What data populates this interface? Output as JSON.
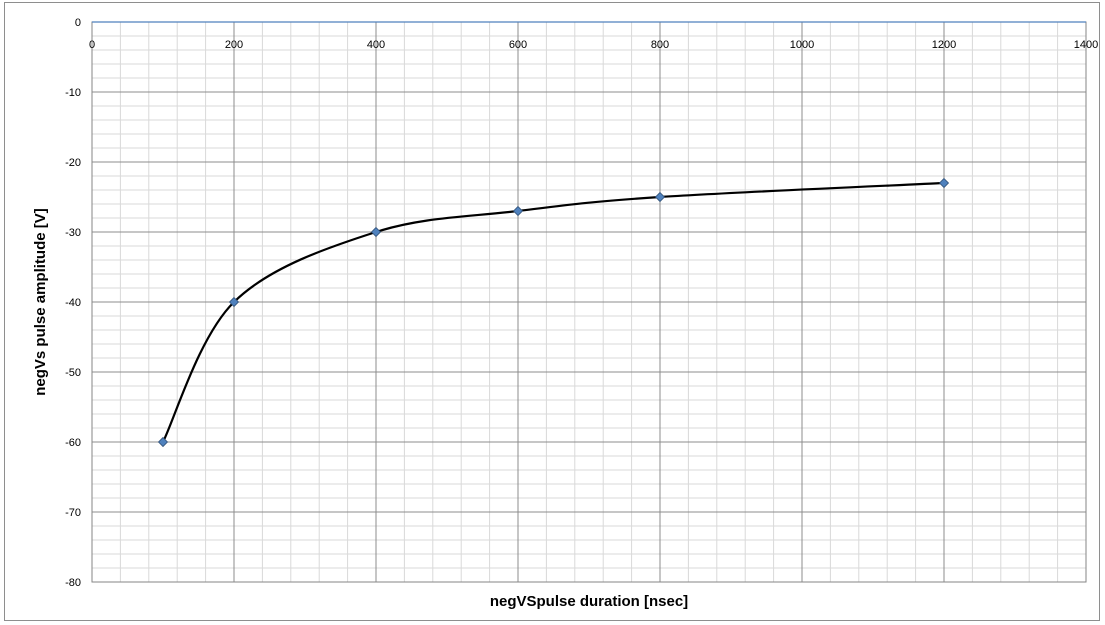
{
  "chart_data": {
    "type": "line",
    "title": "",
    "xlabel": "negVSpulse  duration [nsec]",
    "ylabel": "negVs pulse amplitude [V]",
    "xlim": [
      0,
      1400
    ],
    "ylim": [
      -80,
      0
    ],
    "x_ticks": [
      0,
      200,
      400,
      600,
      800,
      1000,
      1200,
      1400
    ],
    "y_ticks": [
      0,
      -10,
      -20,
      -30,
      -40,
      -50,
      -60,
      -70,
      -80
    ],
    "x_tick_position": "top",
    "grid": true,
    "legend": "none",
    "series": [
      {
        "x": [
          100,
          200,
          400,
          600,
          800,
          1200
        ],
        "y": [
          -60,
          -40,
          -30,
          -27,
          -25,
          -23
        ],
        "line_color": "#000000",
        "marker": "diamond",
        "marker_color": "#4f81bd"
      }
    ]
  }
}
